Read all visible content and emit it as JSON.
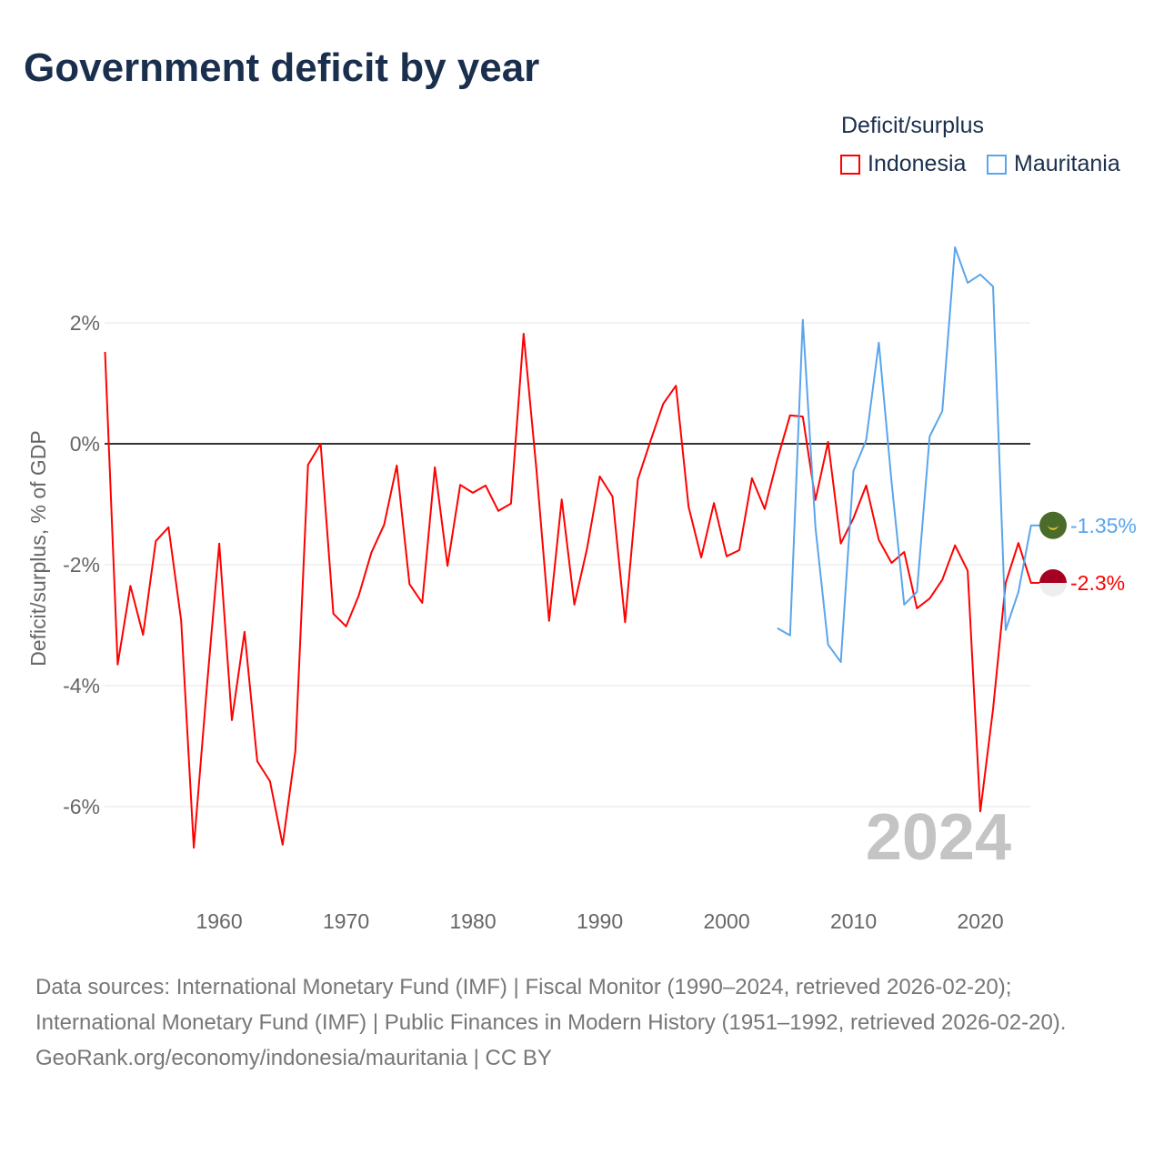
{
  "title": "Government deficit by year",
  "legend": {
    "title": "Deficit/surplus",
    "items": [
      "Indonesia",
      "Mauritania"
    ]
  },
  "footer": {
    "sources": "Data sources: International Monetary Fund (IMF) | Fiscal Monitor (1990–2024, retrieved 2026-02-20); International Monetary Fund (IMF) | Public Finances in Modern History (1951–1992, retrieved 2026-02-20).",
    "credit": "GeoRank.org/economy/indonesia/mauritania | CC BY"
  },
  "chart_data": {
    "type": "line",
    "title": "Government deficit by year",
    "ylabel": "Deficit/surplus, % of GDP",
    "xlabel": "",
    "ylim": [
      -7,
      3.5
    ],
    "xlim": [
      1951,
      2024
    ],
    "yticks": [
      2,
      0,
      -2,
      -4,
      -6
    ],
    "ytick_labels": [
      "2%",
      "0%",
      "-2%",
      "-4%",
      "-6%"
    ],
    "xticks": [
      1960,
      1970,
      1980,
      1990,
      2000,
      2010,
      2020
    ],
    "xtick_labels": [
      "1960",
      "1970",
      "1980",
      "1990",
      "2000",
      "2010",
      "2020"
    ],
    "year_label": "2024",
    "series": [
      {
        "name": "Indonesia",
        "color": "#ff0000",
        "start": 1951,
        "end_label": "-2.3%",
        "values": [
          1.52,
          -3.65,
          -2.35,
          -3.16,
          -1.61,
          -1.38,
          -2.92,
          -6.68,
          -4.09,
          -1.65,
          -4.57,
          -3.11,
          -5.25,
          -5.58,
          -6.63,
          -5.08,
          -0.35,
          0,
          -2.81,
          -3.02,
          -2.51,
          -1.8,
          -1.34,
          -0.36,
          -2.32,
          -2.63,
          -0.39,
          -2.02,
          -0.68,
          -0.81,
          -0.69,
          -1.11,
          -0.99,
          1.82,
          -0.41,
          -2.93,
          -0.92,
          -2.66,
          -1.73,
          -0.54,
          -0.87,
          -2.95,
          -0.59,
          0.05,
          0.66,
          0.96,
          -1.04,
          -1.88,
          -0.98,
          -1.86,
          -1.76,
          -0.57,
          -1.08,
          -0.26,
          0.47,
          0.45,
          -0.93,
          0.03,
          -1.65,
          -1.23,
          -0.69,
          -1.59,
          -1.97,
          -1.79,
          -2.72,
          -2.56,
          -2.25,
          -1.68,
          -2.1,
          -6.08,
          -4.39,
          -2.3,
          -1.64,
          -2.3
        ]
      },
      {
        "name": "Mauritania",
        "color": "#5aa5ec",
        "start": 2004,
        "end_label": "-1.35%",
        "values": [
          -3.05,
          -3.17,
          2.05,
          -1.38,
          -3.32,
          -3.61,
          -0.45,
          0.06,
          1.67,
          -0.63,
          -2.66,
          -2.45,
          0.12,
          0.54,
          3.25,
          2.66,
          2.8,
          2.6,
          -3.08,
          -2.45,
          -1.35
        ]
      }
    ]
  }
}
